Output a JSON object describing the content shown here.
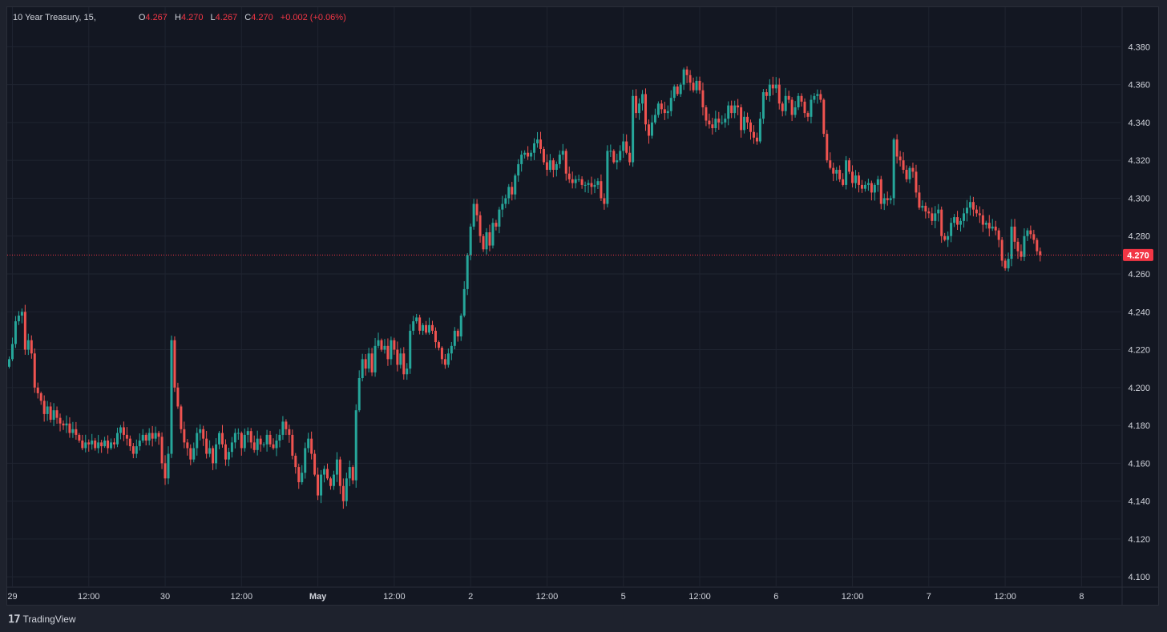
{
  "legend": {
    "symbol": "10 Year Treasury, 15,",
    "open_label": "O",
    "open": "4.267",
    "high_label": "H",
    "high": "4.270",
    "low_label": "L",
    "low": "4.267",
    "close_label": "C",
    "close": "4.270",
    "change": "+0.002 (+0.06%)"
  },
  "brand": {
    "name": "TradingView"
  },
  "colors": {
    "up": "#26a69a",
    "down": "#ef5350",
    "price_tag": "#f23645",
    "grid": "#1f2430",
    "text": "#d1d4dc"
  },
  "chart_data": {
    "type": "candlestick",
    "y_ticks": [
      "4.100",
      "4.120",
      "4.140",
      "4.160",
      "4.180",
      "4.200",
      "4.220",
      "4.240",
      "4.260",
      "4.280",
      "4.300",
      "4.320",
      "4.340",
      "4.360",
      "4.380"
    ],
    "ylim": [
      4.095,
      4.392
    ],
    "x_ticks": [
      {
        "label": "29",
        "bar": 1
      },
      {
        "label": "12:00",
        "bar": 25
      },
      {
        "label": "30",
        "bar": 49
      },
      {
        "label": "12:00",
        "bar": 73
      },
      {
        "label": "May",
        "bar": 97,
        "bold": true
      },
      {
        "label": "12:00",
        "bar": 121
      },
      {
        "label": "2",
        "bar": 145
      },
      {
        "label": "12:00",
        "bar": 169
      },
      {
        "label": "5",
        "bar": 193
      },
      {
        "label": "12:00",
        "bar": 217
      },
      {
        "label": "6",
        "bar": 241
      },
      {
        "label": "12:00",
        "bar": 265
      },
      {
        "label": "7",
        "bar": 289
      },
      {
        "label": "12:00",
        "bar": 313
      },
      {
        "label": "8",
        "bar": 337
      }
    ],
    "last_price": "4.270",
    "last_value": 4.27,
    "closes": [
      4.215,
      4.223,
      4.235,
      4.238,
      4.24,
      4.22,
      4.225,
      4.218,
      4.2,
      4.197,
      4.193,
      4.186,
      4.19,
      4.183,
      4.188,
      4.184,
      4.181,
      4.18,
      4.181,
      4.176,
      4.178,
      4.175,
      4.172,
      4.168,
      4.171,
      4.17,
      4.172,
      4.168,
      4.171,
      4.169,
      4.172,
      4.168,
      4.171,
      4.17,
      4.176,
      4.179,
      4.175,
      4.173,
      4.169,
      4.165,
      4.169,
      4.172,
      4.175,
      4.172,
      4.176,
      4.173,
      4.176,
      4.174,
      4.16,
      4.152,
      4.165,
      4.225,
      4.2,
      4.19,
      4.178,
      4.171,
      4.168,
      4.162,
      4.168,
      4.176,
      4.178,
      4.173,
      4.165,
      4.168,
      4.16,
      4.17,
      4.176,
      4.17,
      4.162,
      4.166,
      4.171,
      4.176,
      4.176,
      4.168,
      4.175,
      4.177,
      4.171,
      4.167,
      4.173,
      4.17,
      4.17,
      4.175,
      4.17,
      4.168,
      4.172,
      4.175,
      4.182,
      4.178,
      4.175,
      4.164,
      4.158,
      4.15,
      4.155,
      4.168,
      4.173,
      4.165,
      4.154,
      4.143,
      4.154,
      4.157,
      4.152,
      4.148,
      4.154,
      4.162,
      4.148,
      4.14,
      4.152,
      4.158,
      4.151,
      4.188,
      4.205,
      4.215,
      4.21,
      4.218,
      4.208,
      4.222,
      4.225,
      4.22,
      4.222,
      4.215,
      4.225,
      4.22,
      4.212,
      4.218,
      4.207,
      4.21,
      4.23,
      4.235,
      4.237,
      4.23,
      4.233,
      4.229,
      4.233,
      4.23,
      4.224,
      4.221,
      4.215,
      4.212,
      4.218,
      4.222,
      4.23,
      4.227,
      4.238,
      4.252,
      4.27,
      4.285,
      4.297,
      4.291,
      4.28,
      4.273,
      4.282,
      4.275,
      4.287,
      4.285,
      4.294,
      4.297,
      4.3,
      4.306,
      4.302,
      4.312,
      4.318,
      4.323,
      4.324,
      4.322,
      4.324,
      4.329,
      4.331,
      4.326,
      4.319,
      4.315,
      4.32,
      4.315,
      4.318,
      4.323,
      4.325,
      4.313,
      4.31,
      4.308,
      4.31,
      4.31,
      4.307,
      4.307,
      4.308,
      4.306,
      4.307,
      4.309,
      4.3,
      4.297,
      4.325,
      4.325,
      4.319,
      4.32,
      4.325,
      4.33,
      4.324,
      4.319,
      4.354,
      4.345,
      4.35,
      4.355,
      4.339,
      4.333,
      4.34,
      4.344,
      4.35,
      4.347,
      4.345,
      4.346,
      4.353,
      4.359,
      4.355,
      4.36,
      4.368,
      4.365,
      4.361,
      4.357,
      4.362,
      4.357,
      4.348,
      4.341,
      4.339,
      4.337,
      4.342,
      4.34,
      4.34,
      4.342,
      4.349,
      4.345,
      4.349,
      4.348,
      4.336,
      4.343,
      4.34,
      4.335,
      4.332,
      4.33,
      4.342,
      4.356,
      4.354,
      4.36,
      4.358,
      4.36,
      4.35,
      4.346,
      4.354,
      4.352,
      4.344,
      4.348,
      4.354,
      4.351,
      4.345,
      4.343,
      4.352,
      4.354,
      4.355,
      4.352,
      4.334,
      4.32,
      4.316,
      4.313,
      4.315,
      4.31,
      4.307,
      4.32,
      4.314,
      4.308,
      4.312,
      4.307,
      4.305,
      4.307,
      4.308,
      4.303,
      4.307,
      4.31,
      4.297,
      4.3,
      4.299,
      4.3,
      4.331,
      4.322,
      4.32,
      4.315,
      4.31,
      4.316,
      4.314,
      4.303,
      4.295,
      4.296,
      4.293,
      4.292,
      4.288,
      4.292,
      4.294,
      4.28,
      4.278,
      4.28,
      4.287,
      4.29,
      4.286,
      4.288,
      4.292,
      4.295,
      4.298,
      4.294,
      4.292,
      4.291,
      4.286,
      4.287,
      4.284,
      4.285,
      4.283,
      4.278,
      4.267,
      4.263,
      4.268,
      4.285,
      4.277,
      4.272,
      4.269,
      4.28,
      4.283,
      4.281,
      4.278,
      4.272,
      4.27
    ]
  }
}
